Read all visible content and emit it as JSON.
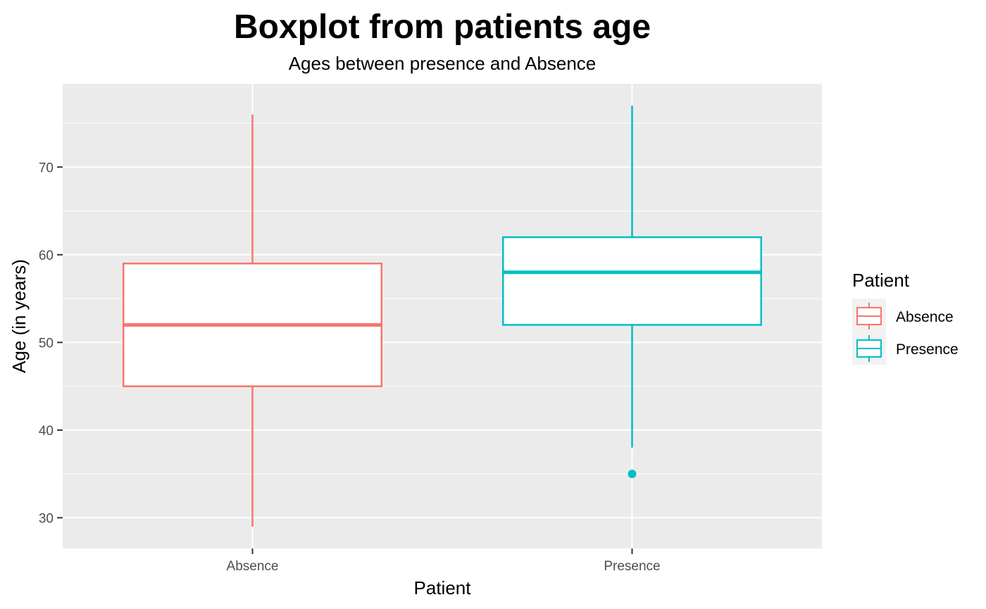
{
  "chart_data": {
    "type": "boxplot",
    "title": "Boxplot from patients age",
    "subtitle": "Ages between presence and Absence",
    "xlabel": "Patient",
    "ylabel": "Age (in years)",
    "ylim": [
      26.5,
      79.5
    ],
    "yticks": [
      30,
      40,
      50,
      60,
      70
    ],
    "grid": true,
    "categories": [
      "Absence",
      "Presence"
    ],
    "series": [
      {
        "name": "Absence",
        "color": "#F8766D",
        "min": 29,
        "q1": 45,
        "median": 52,
        "q3": 59,
        "max": 76,
        "outliers": []
      },
      {
        "name": "Presence",
        "color": "#00BFC4",
        "min": 38,
        "q1": 52,
        "median": 58,
        "q3": 62,
        "max": 77,
        "outliers": [
          35
        ]
      }
    ],
    "legend": {
      "title": "Patient",
      "placement": "right",
      "entries": [
        "Absence",
        "Presence"
      ]
    }
  }
}
